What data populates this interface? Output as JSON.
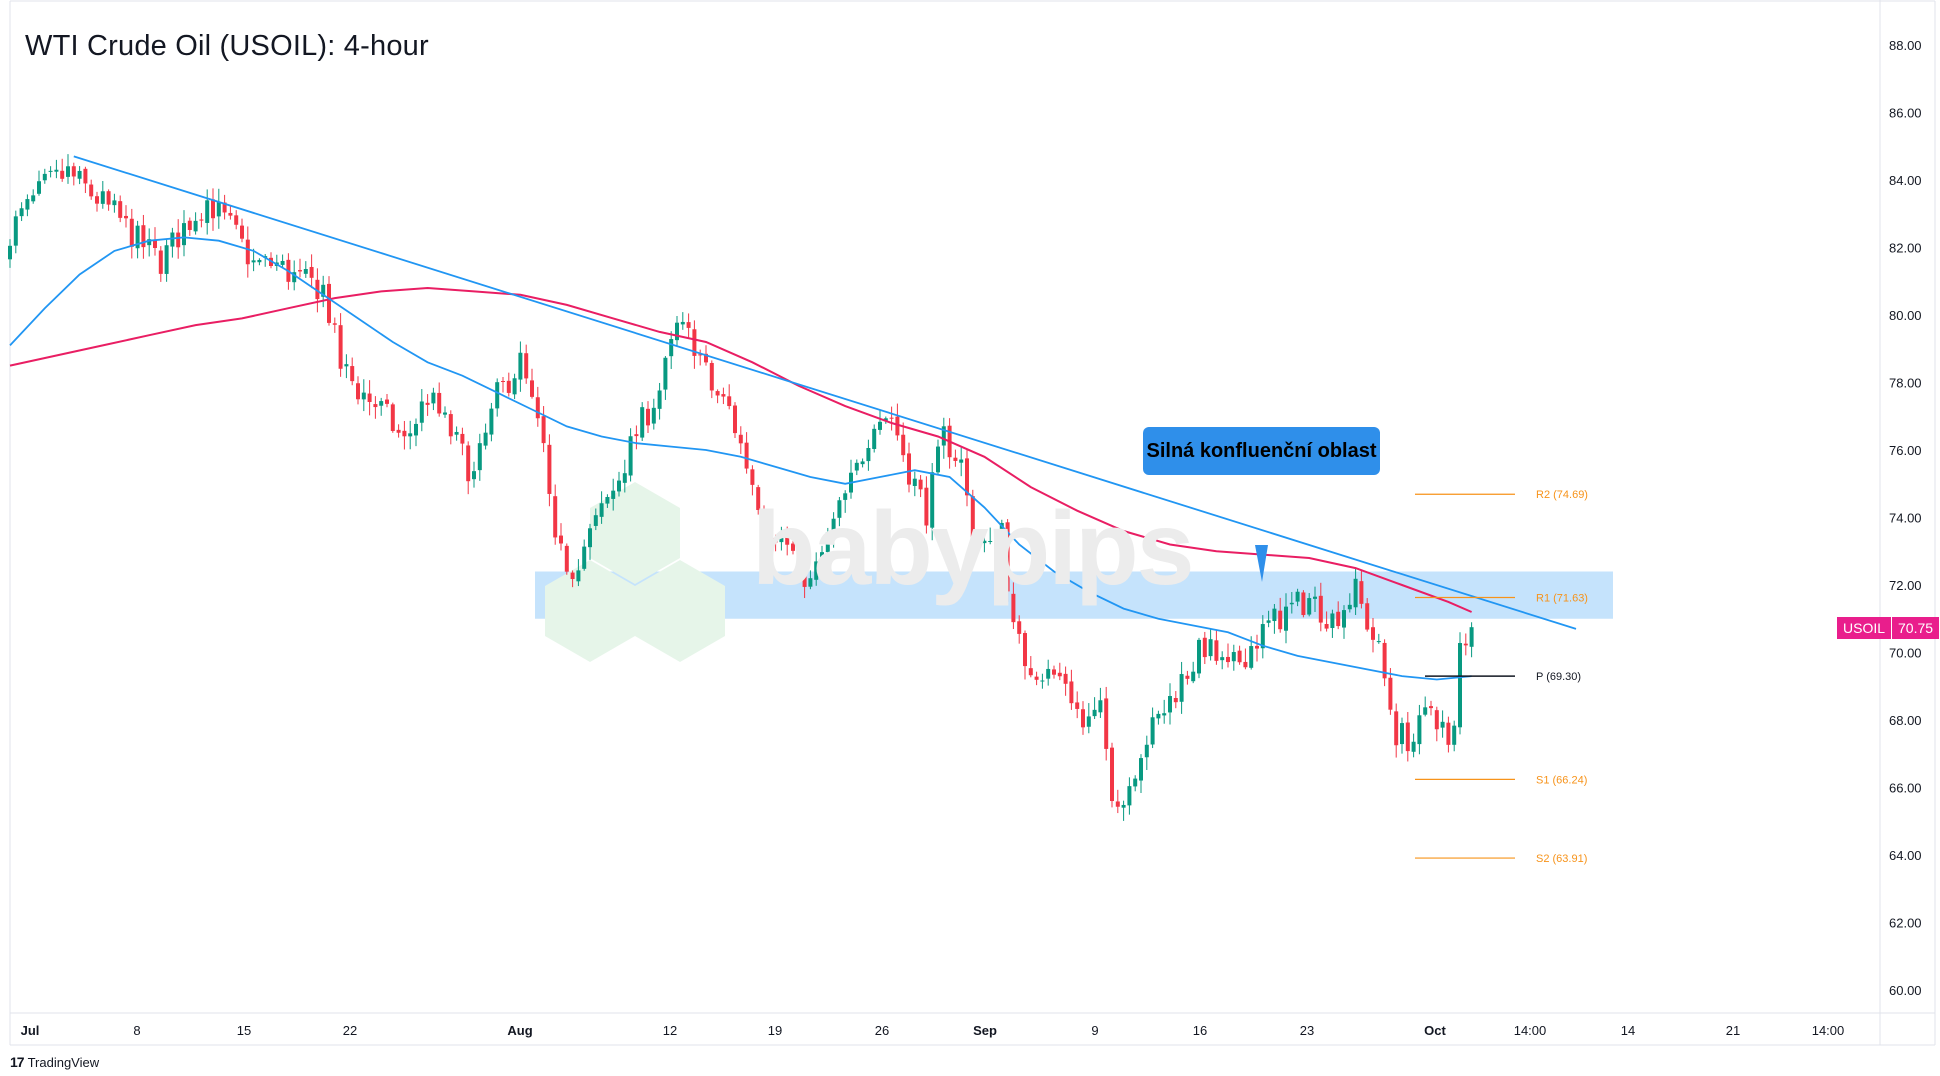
{
  "title": "WTI Crude Oil (USOIL): 4-hour",
  "watermark": "babypips",
  "branding": "TradingView",
  "annotation": "Silná konfluenční oblast",
  "price_label": {
    "symbol": "USOIL",
    "value": "70.75"
  },
  "colors": {
    "up_candle": "#089981",
    "down_candle": "#f23645",
    "ma_fast": "#2196f3",
    "ma_slow": "#e91e63",
    "trendline": "#2196f3",
    "zone": "#bbdefb",
    "pivot_levels": "#f7931a",
    "pivot_line": "#131722",
    "annotation_bg": "#2f8fea"
  },
  "chart_data": {
    "type": "candlestick",
    "title": "WTI Crude Oil (USOIL): 4-hour",
    "y_axis": {
      "min": 60,
      "max": 88,
      "ticks": [
        "88.00",
        "86.00",
        "84.00",
        "82.00",
        "80.00",
        "78.00",
        "76.00",
        "74.00",
        "72.00",
        "70.00",
        "68.00",
        "66.00",
        "64.00",
        "62.00",
        "60.00"
      ]
    },
    "x_axis": {
      "ticks": [
        "Jul",
        "8",
        "15",
        "22",
        "Aug",
        "12",
        "19",
        "26",
        "Sep",
        "9",
        "16",
        "23",
        "Oct",
        "14:00",
        "14",
        "21",
        "14:00"
      ]
    },
    "pivot_levels": [
      {
        "label": "R2 (74.69)",
        "value": 74.69
      },
      {
        "label": "R1 (71.63)",
        "value": 71.63
      },
      {
        "label": "P (69.30)",
        "value": 69.3
      },
      {
        "label": "S1 (66.24)",
        "value": 66.24
      },
      {
        "label": "S2 (63.91)",
        "value": 63.91
      }
    ],
    "confluence_zone": {
      "from": 71.0,
      "to": 72.4
    },
    "current_price": 70.75,
    "price_path": [
      [
        0,
        82.5
      ],
      [
        3,
        83.8
      ],
      [
        5,
        84.2
      ],
      [
        7,
        83.6
      ],
      [
        9,
        83.0
      ],
      [
        11,
        82.2
      ],
      [
        13,
        81.6
      ],
      [
        15,
        82.6
      ],
      [
        17,
        83.4
      ],
      [
        19,
        82.6
      ],
      [
        21,
        81.5
      ],
      [
        23,
        81.5
      ],
      [
        25,
        81.0
      ],
      [
        27,
        80.8
      ],
      [
        28.5,
        78.5
      ],
      [
        30,
        77.8
      ],
      [
        32,
        77.2
      ],
      [
        34,
        76.2
      ],
      [
        36,
        77.6
      ],
      [
        38,
        76.5
      ],
      [
        40,
        75.2
      ],
      [
        42,
        77.6
      ],
      [
        44,
        78.6
      ],
      [
        46,
        76.0
      ],
      [
        47,
        73.0
      ],
      [
        48.5,
        72.5
      ],
      [
        50,
        73.5
      ],
      [
        52,
        74.8
      ],
      [
        54,
        76.5
      ],
      [
        56,
        77.8
      ],
      [
        57.5,
        79.6
      ],
      [
        59,
        79.2
      ],
      [
        60.5,
        77.8
      ],
      [
        62,
        77.2
      ],
      [
        63.5,
        75.6
      ],
      [
        65,
        74.0
      ],
      [
        67,
        73.2
      ],
      [
        69,
        72.0
      ],
      [
        71,
        73.8
      ],
      [
        73,
        75.4
      ],
      [
        74.5,
        77.0
      ],
      [
        76,
        77.0
      ],
      [
        77.5,
        75.4
      ],
      [
        79,
        74.2
      ],
      [
        80.5,
        76.4
      ],
      [
        82,
        75.6
      ],
      [
        83,
        73.5
      ],
      [
        84.5,
        73.0
      ],
      [
        85.5,
        73.8
      ],
      [
        86.5,
        70.6
      ],
      [
        87.5,
        69.8
      ],
      [
        89,
        69.4
      ],
      [
        91,
        69.2
      ],
      [
        92.5,
        67.8
      ],
      [
        94,
        68.2
      ],
      [
        95,
        66.0
      ],
      [
        96,
        65.6
      ],
      [
        97.5,
        67.2
      ],
      [
        99,
        68.0
      ],
      [
        101,
        69.2
      ],
      [
        103,
        70.2
      ],
      [
        105,
        69.4
      ],
      [
        107,
        70.2
      ],
      [
        108.5,
        70.8
      ],
      [
        110,
        71.2
      ],
      [
        112,
        71.6
      ],
      [
        114,
        71.0
      ],
      [
        116,
        71.8
      ],
      [
        118,
        70.0
      ],
      [
        119.5,
        67.6
      ],
      [
        121,
        67.4
      ],
      [
        122.5,
        68.4
      ],
      [
        123.5,
        67.8
      ],
      [
        124.3,
        66.6
      ],
      [
        125,
        70.2
      ],
      [
        126,
        70.75
      ]
    ],
    "ma_fast": [
      [
        0,
        79.1
      ],
      [
        3,
        80.2
      ],
      [
        6,
        81.2
      ],
      [
        9,
        81.9
      ],
      [
        12,
        82.2
      ],
      [
        15,
        82.3
      ],
      [
        18,
        82.2
      ],
      [
        21,
        81.9
      ],
      [
        24,
        81.3
      ],
      [
        27,
        80.6
      ],
      [
        30,
        79.9
      ],
      [
        33,
        79.2
      ],
      [
        36,
        78.6
      ],
      [
        39,
        78.2
      ],
      [
        42,
        77.7
      ],
      [
        45,
        77.2
      ],
      [
        48,
        76.7
      ],
      [
        51,
        76.4
      ],
      [
        54,
        76.2
      ],
      [
        57,
        76.1
      ],
      [
        60,
        76.0
      ],
      [
        63,
        75.8
      ],
      [
        66,
        75.5
      ],
      [
        69,
        75.2
      ],
      [
        72,
        75.0
      ],
      [
        75,
        75.2
      ],
      [
        78,
        75.4
      ],
      [
        81,
        75.2
      ],
      [
        84,
        74.3
      ],
      [
        87,
        73.2
      ],
      [
        90,
        72.4
      ],
      [
        93,
        71.8
      ],
      [
        96,
        71.3
      ],
      [
        99,
        71.0
      ],
      [
        102,
        70.8
      ],
      [
        105,
        70.6
      ],
      [
        108,
        70.2
      ],
      [
        111,
        69.9
      ],
      [
        114,
        69.7
      ],
      [
        117,
        69.5
      ],
      [
        120,
        69.3
      ],
      [
        123,
        69.2
      ],
      [
        126,
        69.3
      ]
    ],
    "ma_slow": [
      [
        0,
        78.5
      ],
      [
        4,
        78.8
      ],
      [
        8,
        79.1
      ],
      [
        12,
        79.4
      ],
      [
        16,
        79.7
      ],
      [
        20,
        79.9
      ],
      [
        24,
        80.2
      ],
      [
        28,
        80.5
      ],
      [
        32,
        80.7
      ],
      [
        36,
        80.8
      ],
      [
        40,
        80.7
      ],
      [
        44,
        80.6
      ],
      [
        48,
        80.3
      ],
      [
        52,
        79.9
      ],
      [
        56,
        79.5
      ],
      [
        60,
        79.2
      ],
      [
        64,
        78.6
      ],
      [
        68,
        77.9
      ],
      [
        72,
        77.3
      ],
      [
        76,
        76.8
      ],
      [
        80,
        76.4
      ],
      [
        84,
        75.8
      ],
      [
        88,
        74.9
      ],
      [
        92,
        74.2
      ],
      [
        96,
        73.6
      ],
      [
        100,
        73.2
      ],
      [
        104,
        73.0
      ],
      [
        108,
        72.9
      ],
      [
        112,
        72.8
      ],
      [
        116,
        72.5
      ],
      [
        120,
        72.0
      ],
      [
        124,
        71.5
      ],
      [
        126,
        71.2
      ]
    ],
    "trendline": {
      "from": [
        5.5,
        84.7
      ],
      "to": [
        135,
        70.7
      ]
    }
  }
}
